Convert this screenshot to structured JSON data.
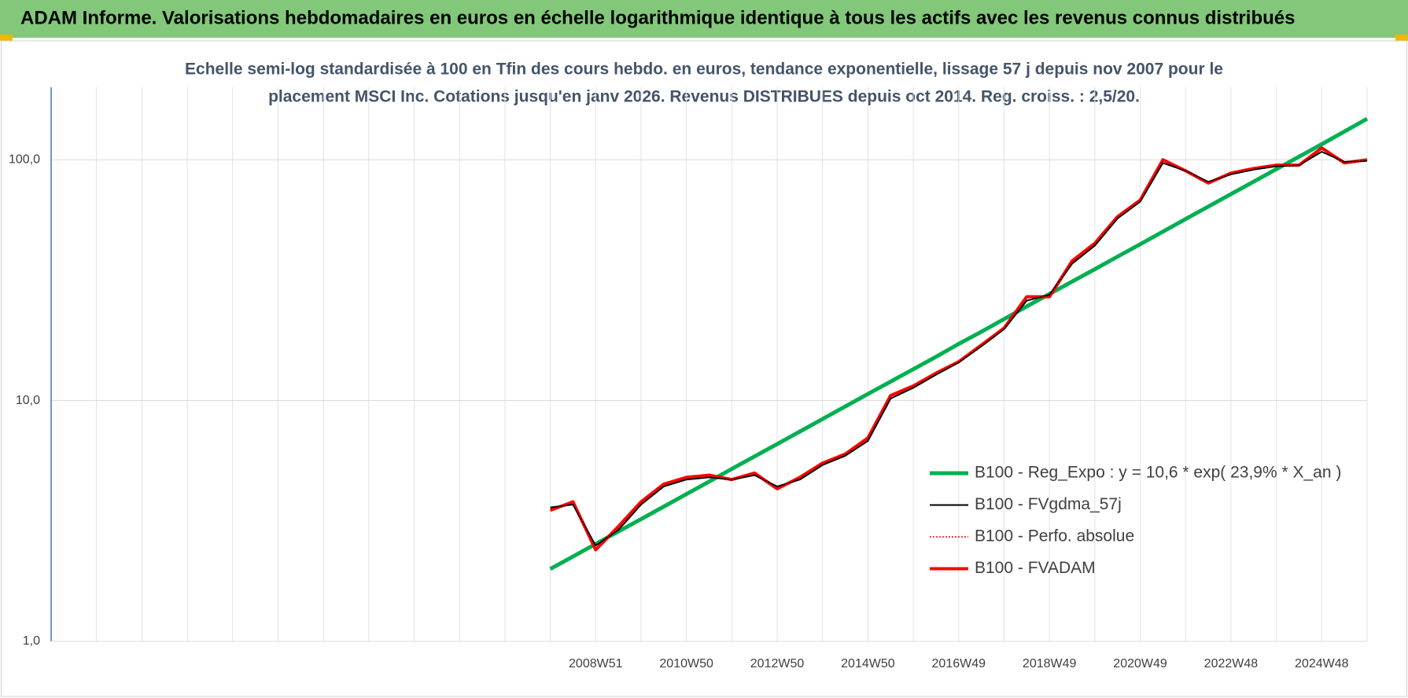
{
  "chart_data": {
    "type": "line",
    "title": "ADAM Informe. Valorisations hebdomadaires en euros en échelle logarithmique identique à tous les actifs avec les revenus connus distribués",
    "subtitle": [
      "Echelle semi-log standardisée à 100 en Tfin des cours hebdo. en euros, tendance exponentielle, lissage 57 j depuis nov 2007 pour le",
      "placement MSCI Inc. Cotations jusqu'en janv 2026. Revenus DISTRIBUES depuis oct 2014. Reg. croiss. : 2,5/20."
    ],
    "categories": [
      null,
      null,
      null,
      null,
      null,
      null,
      null,
      null,
      null,
      null,
      null,
      null,
      null,
      null,
      null,
      null,
      null,
      null,
      null,
      null,
      null,
      null,
      null,
      null,
      "2008W51",
      null,
      null,
      null,
      "2010W50",
      null,
      null,
      null,
      "2012W50",
      null,
      null,
      null,
      "2014W50",
      null,
      null,
      null,
      "2016W49",
      null,
      null,
      null,
      "2018W49",
      null,
      null,
      null,
      "2020W49",
      null,
      null,
      null,
      "2022W48",
      null,
      null,
      null,
      "2024W48",
      null,
      null
    ],
    "log_scale": true,
    "grid": true,
    "legend": "lower-right",
    "ylim": [
      1,
      200
    ],
    "yticks": [
      {
        "value": 1,
        "label": "1,0"
      },
      {
        "value": 10,
        "label": "10,0"
      },
      {
        "value": 100,
        "label": "100,0"
      }
    ],
    "series": [
      {
        "name": "B100 - Reg_Expo : y = 10,6 * exp( 23,9% *  X_an )",
        "color": "#00b050",
        "style": "solid",
        "width": 5,
        "values": [
          null,
          null,
          null,
          null,
          null,
          null,
          null,
          null,
          null,
          null,
          null,
          null,
          null,
          null,
          null,
          null,
          null,
          null,
          null,
          null,
          null,
          null,
          2.0,
          2.25,
          2.54,
          2.86,
          3.22,
          3.63,
          4.09,
          4.61,
          5.2,
          5.86,
          6.6,
          7.44,
          8.38,
          9.45,
          10.65,
          12.0,
          13.5,
          15.2,
          17.2,
          19.3,
          21.8,
          24.6,
          27.7,
          31.2,
          35.1,
          39.6,
          44.6,
          50.3,
          56.7,
          63.9,
          72.0,
          81.1,
          91.4,
          103,
          116,
          131,
          148
        ]
      },
      {
        "name": "B100 - FVgdma_57j",
        "color": "#000000",
        "style": "solid",
        "width": 2,
        "values": [
          null,
          null,
          null,
          null,
          null,
          null,
          null,
          null,
          null,
          null,
          null,
          null,
          null,
          null,
          null,
          null,
          null,
          null,
          null,
          null,
          null,
          null,
          3.6,
          3.7,
          2.5,
          2.9,
          3.7,
          4.4,
          4.7,
          4.8,
          4.7,
          4.9,
          4.4,
          4.7,
          5.4,
          5.9,
          6.8,
          10.2,
          11.3,
          12.8,
          14.4,
          16.8,
          19.8,
          26,
          27.5,
          37,
          44,
          57,
          67,
          97,
          90,
          81,
          87,
          91,
          94,
          95,
          108,
          98,
          99
        ]
      },
      {
        "name": "B100 - Perfo. absolue",
        "color": "#ff0000",
        "style": "dotted",
        "width": 1.5,
        "values": [
          null,
          null,
          null,
          null,
          null,
          null,
          null,
          null,
          null,
          null,
          null,
          null,
          null,
          null,
          null,
          null,
          null,
          null,
          null,
          null,
          null,
          null,
          3.5,
          3.8,
          2.4,
          3.0,
          3.8,
          4.5,
          4.8,
          4.9,
          4.7,
          5.0,
          4.3,
          4.8,
          5.5,
          6.0,
          7.0,
          10.5,
          11.5,
          13.0,
          14.5,
          17,
          20,
          27,
          27,
          38,
          45,
          58,
          68,
          100,
          90,
          80,
          88,
          92,
          95,
          95,
          112,
          97,
          100
        ]
      },
      {
        "name": "B100 - FVADAM",
        "color": "#ff0000",
        "style": "solid",
        "width": 4,
        "values": [
          null,
          null,
          null,
          null,
          null,
          null,
          null,
          null,
          null,
          null,
          null,
          null,
          null,
          null,
          null,
          null,
          null,
          null,
          null,
          null,
          null,
          null,
          3.5,
          3.8,
          2.4,
          3.0,
          3.8,
          4.5,
          4.8,
          4.9,
          4.7,
          5.0,
          4.3,
          4.8,
          5.5,
          6.0,
          7.0,
          10.5,
          11.5,
          13.0,
          14.5,
          17,
          20,
          27,
          27,
          38,
          45,
          58,
          68,
          100,
          90,
          80,
          88,
          92,
          95,
          95,
          112,
          97,
          100
        ]
      }
    ]
  }
}
